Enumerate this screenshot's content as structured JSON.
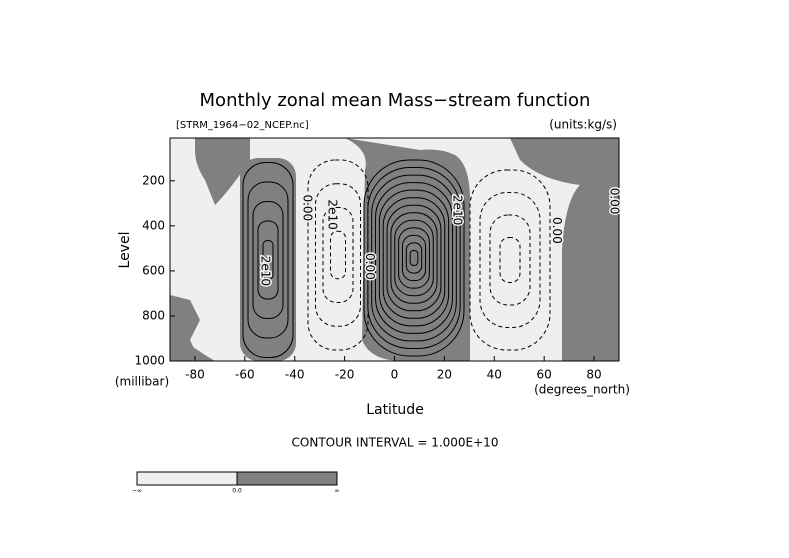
{
  "chart_data": {
    "type": "contour",
    "title": "Monthly zonal mean Mass−stream function",
    "subtitle": "[STRM_1964−02_NCEP.nc]",
    "units_label": "(units:kg/s)",
    "x_label": "Latitude",
    "x_unit": "(degrees_north)",
    "y_label": "Level",
    "y_unit": "(millibar)",
    "xlim": [
      -90,
      90
    ],
    "xticks": [
      -80,
      -60,
      -40,
      -20,
      0,
      20,
      40,
      60,
      80
    ],
    "ylim": [
      1000,
      10
    ],
    "yticks": [
      200,
      400,
      600,
      800,
      1000
    ],
    "contour_labels": [
      "2e10",
      "0.00",
      "2e10",
      "0.00",
      "2e10",
      "0.00",
      "0.00"
    ],
    "note": "CONTOUR INTERVAL = 1.000E+10",
    "colorbar_labels": [
      "−∞",
      "0.0",
      "∞"
    ]
  }
}
